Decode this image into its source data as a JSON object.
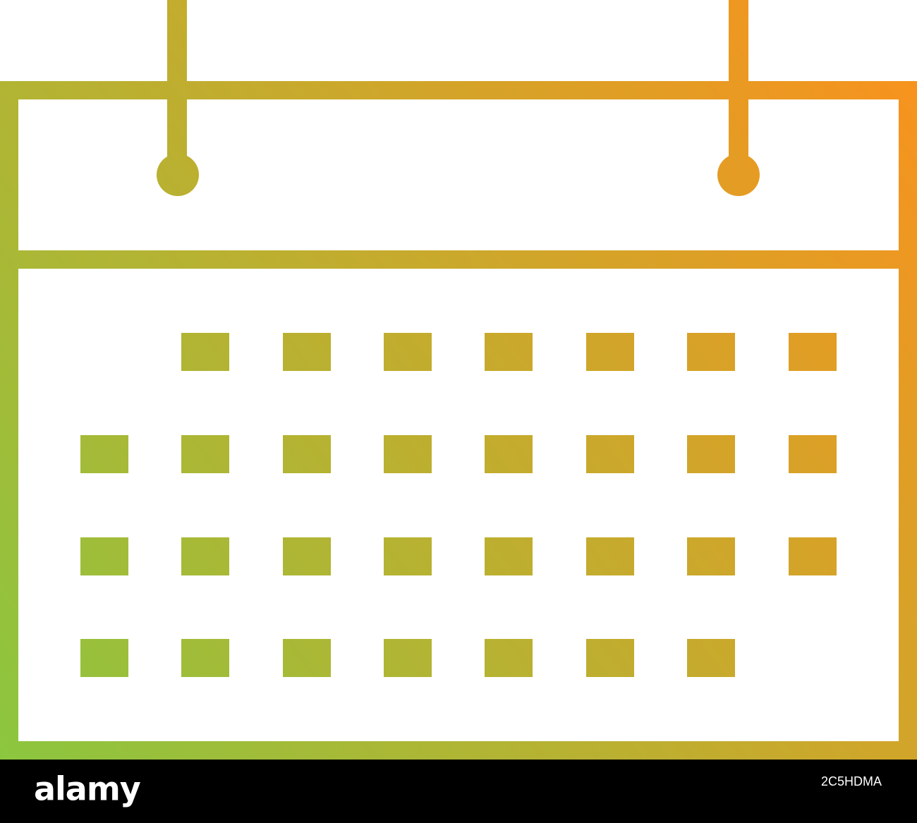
{
  "watermark": {
    "brand": "alamy",
    "image_id": "2C5HDMA"
  }
}
